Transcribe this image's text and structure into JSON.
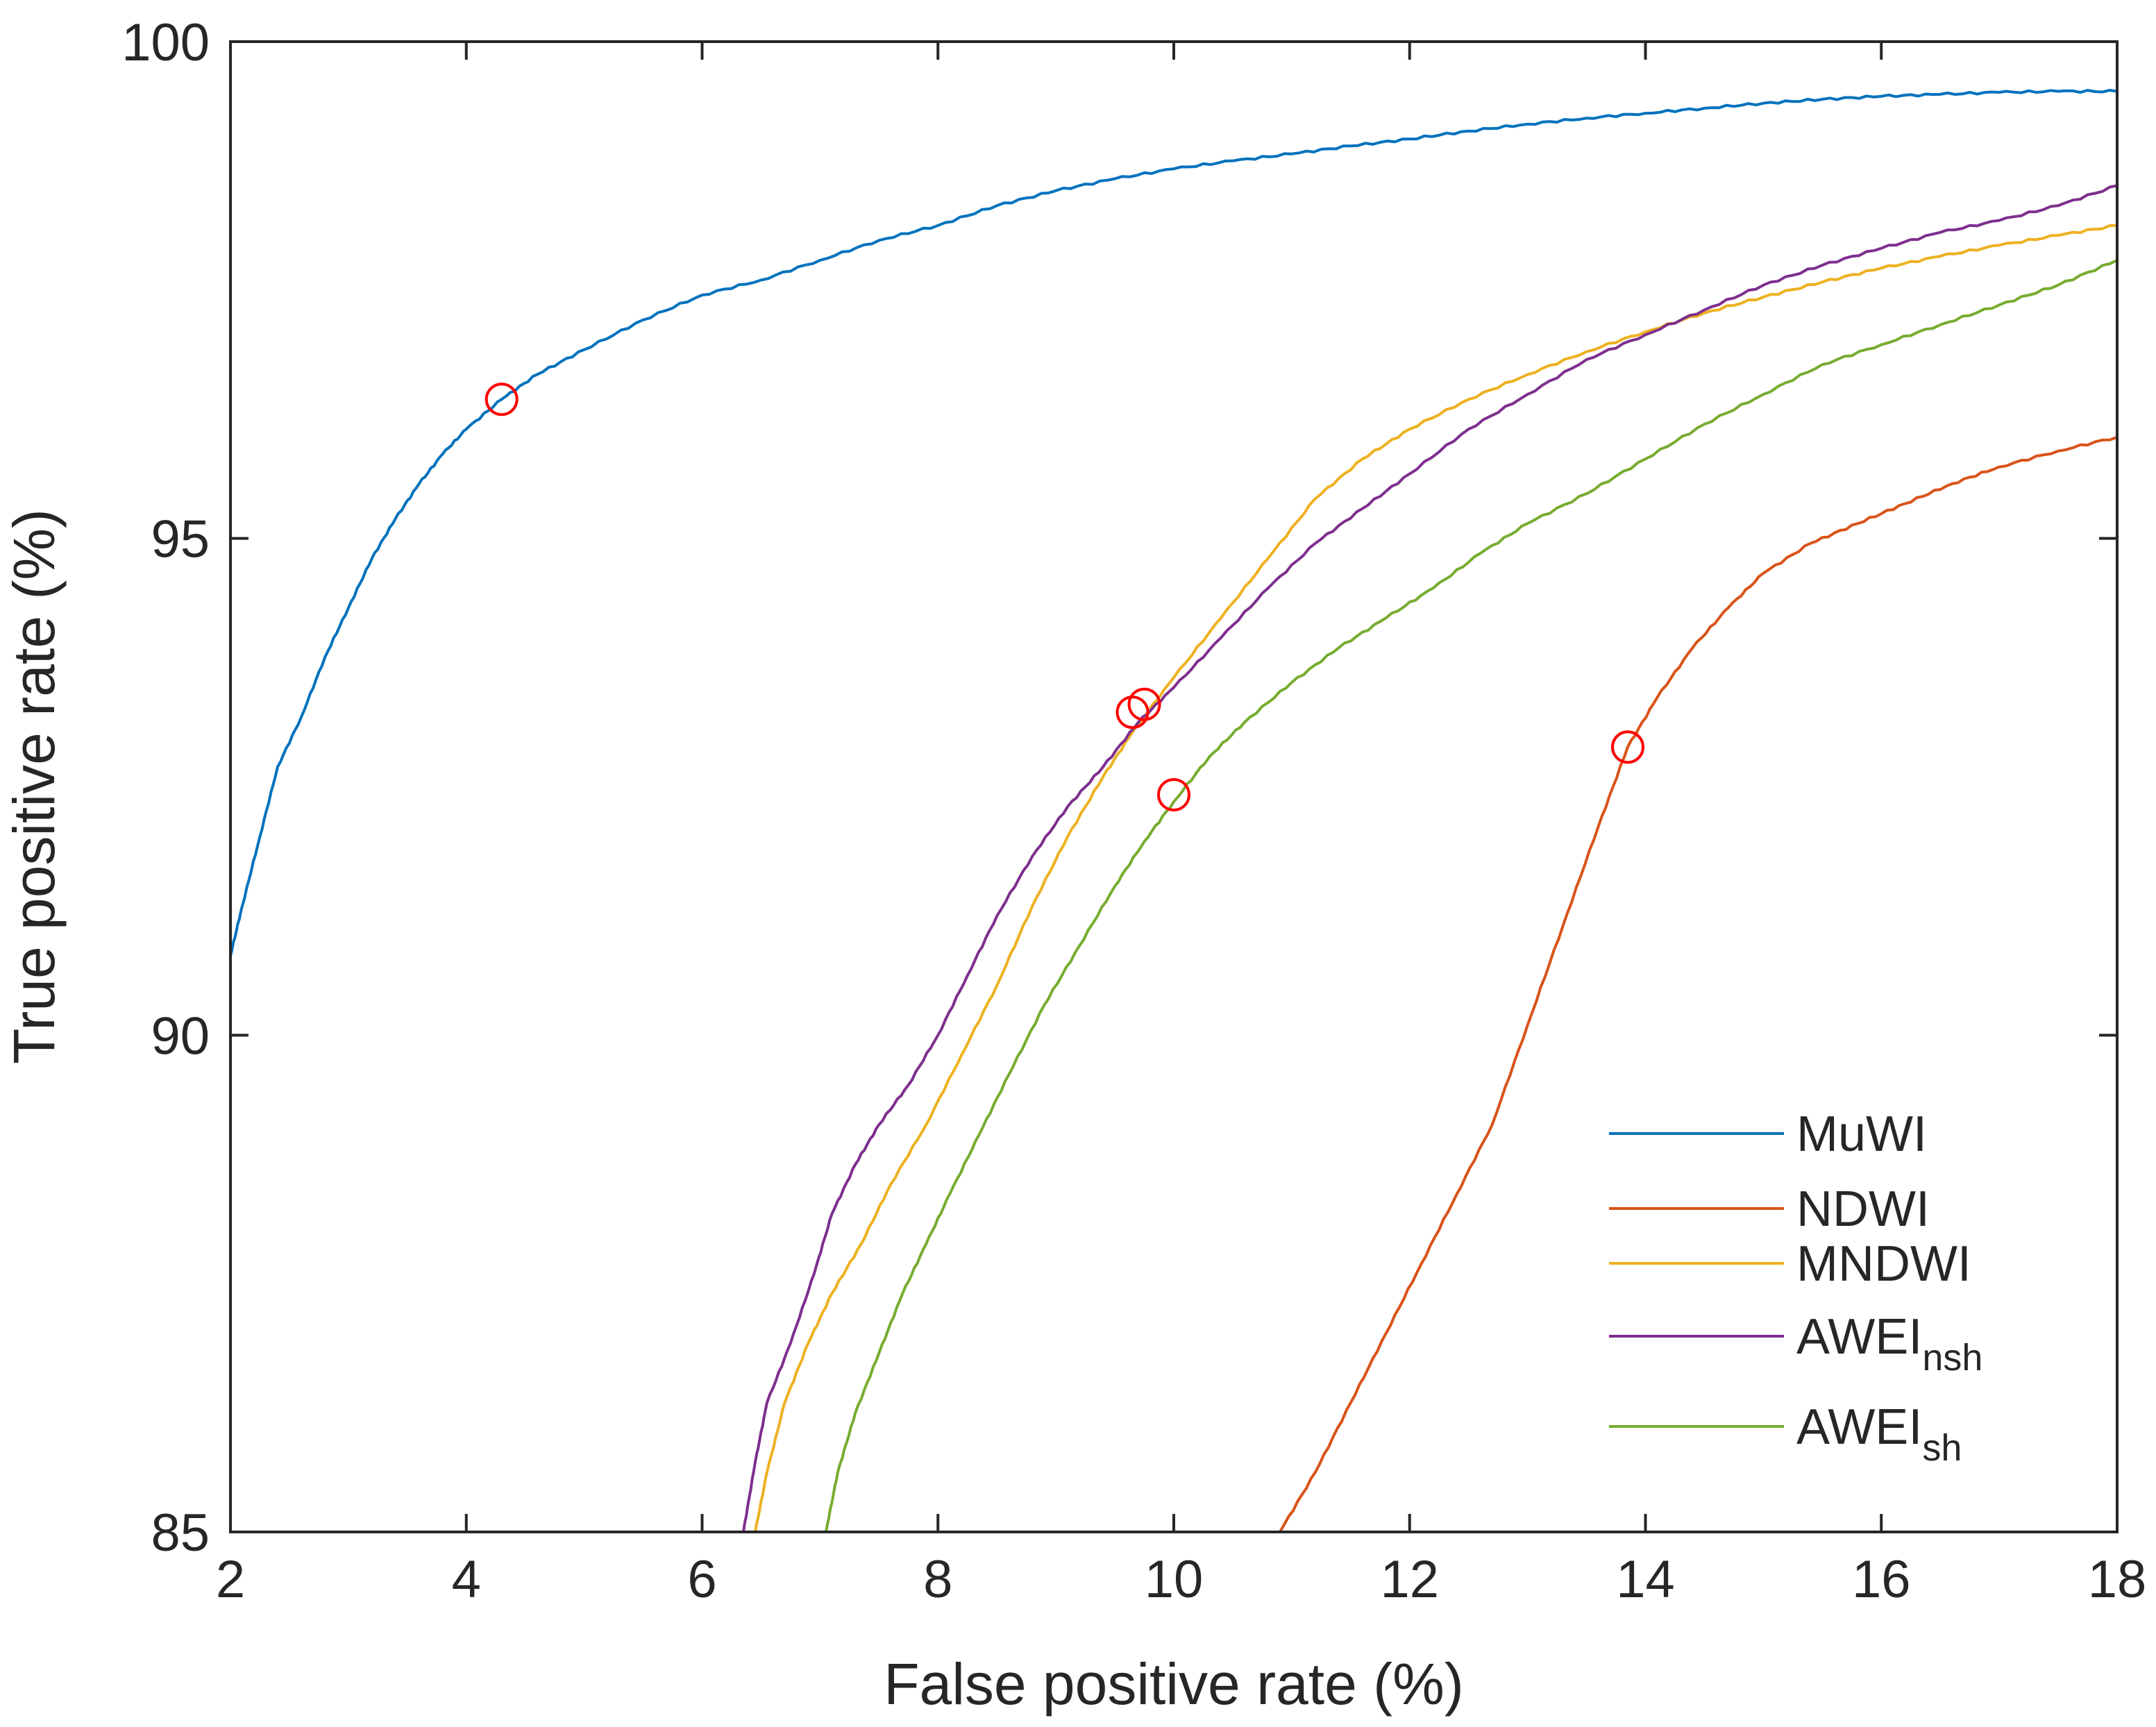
{
  "chart_data": {
    "type": "line",
    "title": "",
    "xlabel": "False positive rate (%)",
    "ylabel": "True positive rate (%)",
    "xlim": [
      2,
      18
    ],
    "ylim": [
      85,
      100
    ],
    "xticks": [
      2,
      4,
      6,
      8,
      10,
      12,
      14,
      16,
      18
    ],
    "yticks": [
      85,
      90,
      95,
      100
    ],
    "grid": false,
    "legend_position": "bottom-right",
    "series": [
      {
        "name": "MuWI",
        "label": "MuWI",
        "subscript": "",
        "color": "#0072BD",
        "x": [
          2.0,
          2.1,
          2.25,
          2.4,
          2.6,
          2.8,
          3.0,
          3.2,
          3.4,
          3.6,
          3.8,
          4.0,
          4.3,
          4.6,
          5.0,
          5.5,
          6.0,
          6.5,
          7.0,
          7.5,
          8.0,
          8.5,
          9.0,
          9.5,
          10.0,
          10.5,
          11.0,
          11.5,
          12.0,
          12.5,
          13.0,
          13.5,
          14.0,
          14.5,
          15.0,
          15.5,
          16.0,
          16.5,
          17.0,
          17.5,
          18.0
        ],
        "y": [
          90.8,
          91.3,
          92.0,
          92.7,
          93.2,
          93.8,
          94.3,
          94.8,
          95.2,
          95.55,
          95.85,
          96.1,
          96.4,
          96.65,
          96.9,
          97.2,
          97.45,
          97.6,
          97.8,
          98.0,
          98.15,
          98.35,
          98.5,
          98.62,
          98.72,
          98.8,
          98.87,
          98.95,
          99.02,
          99.1,
          99.17,
          99.23,
          99.28,
          99.33,
          99.38,
          99.42,
          99.45,
          99.47,
          99.49,
          99.5,
          99.5
        ]
      },
      {
        "name": "NDWI",
        "label": "NDWI",
        "subscript": "",
        "color": "#D95319",
        "x": [
          10.9,
          11.2,
          11.5,
          11.8,
          12.1,
          12.4,
          12.7,
          13.0,
          13.3,
          13.6,
          13.85,
          14.1,
          14.4,
          14.7,
          15.0,
          15.4,
          15.8,
          16.2,
          16.6,
          17.0,
          17.5,
          18.0
        ],
        "y": [
          85.0,
          85.6,
          86.3,
          87.0,
          87.7,
          88.4,
          89.1,
          90.1,
          91.1,
          92.1,
          92.9,
          93.4,
          93.9,
          94.3,
          94.65,
          94.95,
          95.15,
          95.35,
          95.55,
          95.72,
          95.88,
          96.02
        ]
      },
      {
        "name": "MNDWI",
        "label": "MNDWI",
        "subscript": "",
        "color": "#EDB120",
        "x": [
          6.45,
          6.55,
          6.7,
          6.9,
          7.1,
          7.35,
          7.6,
          7.9,
          8.2,
          8.5,
          8.8,
          9.1,
          9.4,
          9.65,
          10.0,
          10.4,
          10.8,
          11.2,
          11.6,
          12.0,
          12.5,
          13.0,
          13.5,
          14.0,
          14.5,
          15.0,
          15.5,
          16.0,
          16.5,
          17.0,
          17.5,
          18.0
        ],
        "y": [
          85.0,
          85.6,
          86.3,
          86.9,
          87.4,
          87.9,
          88.5,
          89.1,
          89.8,
          90.5,
          91.3,
          92.0,
          92.6,
          93.05,
          93.6,
          94.2,
          94.8,
          95.4,
          95.8,
          96.1,
          96.4,
          96.65,
          96.88,
          97.08,
          97.27,
          97.43,
          97.58,
          97.72,
          97.84,
          97.95,
          98.05,
          98.15
        ]
      },
      {
        "name": "AWEInsh",
        "label": "AWEI",
        "subscript": "nsh",
        "color": "#7E2F8E",
        "x": [
          6.35,
          6.45,
          6.55,
          6.75,
          6.95,
          7.1,
          7.3,
          7.5,
          7.75,
          8.0,
          8.25,
          8.5,
          8.8,
          9.1,
          9.4,
          9.7,
          10.0,
          10.4,
          10.8,
          11.2,
          11.6,
          12.0,
          12.5,
          13.0,
          13.5,
          14.0,
          14.5,
          15.0,
          15.5,
          16.0,
          16.5,
          17.0,
          17.5,
          18.0
        ],
        "y": [
          85.0,
          85.7,
          86.3,
          86.9,
          87.6,
          88.2,
          88.7,
          89.1,
          89.5,
          90.0,
          90.6,
          91.2,
          91.8,
          92.3,
          92.7,
          93.15,
          93.5,
          94.0,
          94.5,
          94.95,
          95.3,
          95.65,
          96.1,
          96.45,
          96.8,
          97.05,
          97.3,
          97.55,
          97.75,
          97.92,
          98.08,
          98.2,
          98.35,
          98.55
        ]
      },
      {
        "name": "AWEIsh",
        "label": "AWEI",
        "subscript": "sh",
        "color": "#77AC30",
        "x": [
          7.05,
          7.15,
          7.3,
          7.5,
          7.7,
          7.9,
          8.1,
          8.35,
          8.6,
          8.9,
          9.2,
          9.5,
          9.75,
          10.0,
          10.3,
          10.6,
          11.0,
          11.4,
          11.8,
          12.2,
          12.6,
          13.0,
          13.5,
          14.0,
          14.5,
          15.0,
          15.5,
          16.0,
          16.5,
          17.0,
          17.5,
          18.0
        ],
        "y": [
          85.0,
          85.6,
          86.2,
          86.8,
          87.4,
          87.9,
          88.4,
          89.0,
          89.6,
          90.3,
          90.9,
          91.5,
          91.95,
          92.35,
          92.8,
          93.15,
          93.55,
          93.9,
          94.2,
          94.5,
          94.85,
          95.15,
          95.45,
          95.8,
          96.15,
          96.45,
          96.75,
          96.95,
          97.15,
          97.35,
          97.55,
          97.8
        ]
      }
    ],
    "markers": [
      {
        "series": "MuWI",
        "x": 4.3,
        "y": 96.4
      },
      {
        "series": "AWEInsh",
        "x": 9.65,
        "y": 93.25
      },
      {
        "series": "MNDWI",
        "x": 9.75,
        "y": 93.33
      },
      {
        "series": "AWEIsh",
        "x": 10.0,
        "y": 92.42
      },
      {
        "series": "NDWI",
        "x": 13.85,
        "y": 92.9
      }
    ],
    "marker_color": "#FF0000"
  }
}
